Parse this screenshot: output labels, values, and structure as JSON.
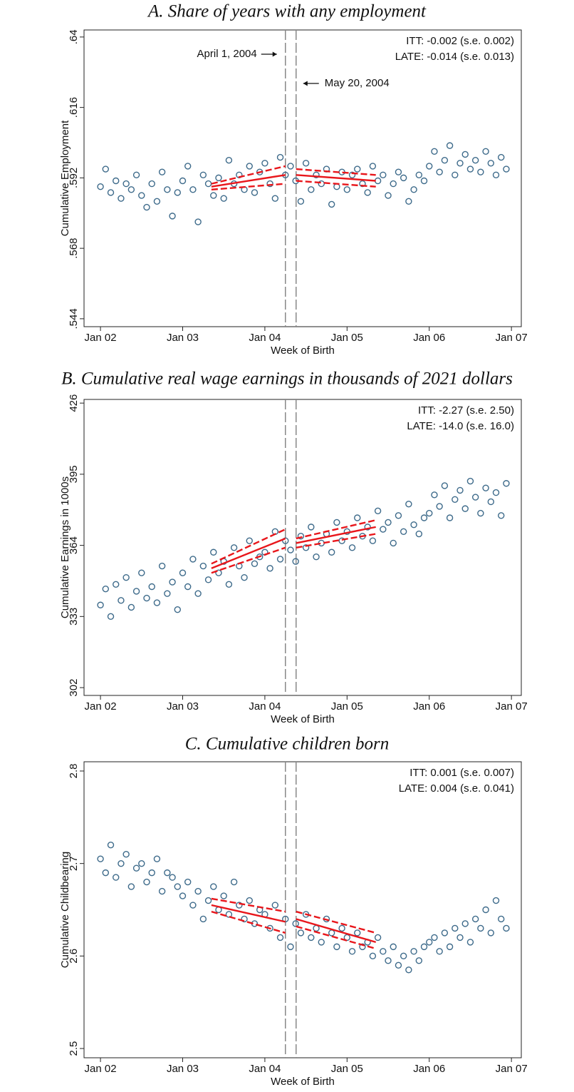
{
  "chart_data": [
    {
      "type": "scatter",
      "title": "A. Share of years with any employment",
      "x_label": "Week of Birth",
      "y_label": "Cumulative Employment",
      "xlim": [
        2001.8,
        2007.12
      ],
      "ylim": [
        0.5413,
        0.6424
      ],
      "xticks": [
        {
          "value": 2002,
          "label": "Jan 02"
        },
        {
          "value": 2003,
          "label": "Jan 03"
        },
        {
          "value": 2004,
          "label": "Jan 04"
        },
        {
          "value": 2005,
          "label": "Jan 05"
        },
        {
          "value": 2006,
          "label": "Jan 06"
        },
        {
          "value": 2007,
          "label": "Jan 07"
        }
      ],
      "yticks": [
        {
          "value": 0.544,
          "label": ".544"
        },
        {
          "value": 0.568,
          "label": ".568"
        },
        {
          "value": 0.592,
          "label": ".592"
        },
        {
          "value": 0.616,
          "label": ".616"
        },
        {
          "value": 0.64,
          "label": ".64"
        }
      ],
      "color": "#3d6a8a",
      "x": [
        2002,
        2002.0625,
        2002.125,
        2002.1875,
        2002.25,
        2002.3125,
        2002.375,
        2002.4375,
        2002.5,
        2002.5625,
        2002.625,
        2002.6875,
        2002.75,
        2002.8125,
        2002.875,
        2002.9375,
        2003,
        2003.0625,
        2003.125,
        2003.1875,
        2003.25,
        2003.3125,
        2003.375,
        2003.4375,
        2003.5,
        2003.5625,
        2003.625,
        2003.6875,
        2003.75,
        2003.8125,
        2003.875,
        2003.9375,
        2004,
        2004.0625,
        2004.125,
        2004.1875,
        2004.25,
        2004.3125,
        2004.375,
        2004.4375,
        2004.5,
        2004.5625,
        2004.625,
        2004.6875,
        2004.75,
        2004.8125,
        2004.875,
        2004.9375,
        2005,
        2005.0625,
        2005.125,
        2005.1875,
        2005.25,
        2005.3125,
        2005.375,
        2005.4375,
        2005.5,
        2005.5625,
        2005.625,
        2005.6875,
        2005.75,
        2005.8125,
        2005.875,
        2005.9375,
        2006,
        2006.0625,
        2006.125,
        2006.1875,
        2006.25,
        2006.3125,
        2006.375,
        2006.4375,
        2006.5,
        2006.5625,
        2006.625,
        2006.6875,
        2006.75,
        2006.8125,
        2006.875,
        2006.9375
      ],
      "values": [
        0.589,
        0.595,
        0.587,
        0.591,
        0.585,
        0.59,
        0.588,
        0.593,
        0.586,
        0.582,
        0.59,
        0.584,
        0.594,
        0.588,
        0.579,
        0.587,
        0.591,
        0.596,
        0.588,
        0.577,
        0.593,
        0.59,
        0.586,
        0.592,
        0.585,
        0.598,
        0.59,
        0.593,
        0.588,
        0.596,
        0.587,
        0.594,
        0.597,
        0.59,
        0.585,
        0.599,
        0.593,
        0.596,
        0.591,
        0.584,
        0.597,
        0.588,
        0.593,
        0.59,
        0.595,
        0.583,
        0.589,
        0.594,
        0.588,
        0.593,
        0.595,
        0.59,
        0.587,
        0.596,
        0.591,
        0.593,
        0.586,
        0.59,
        0.594,
        0.592,
        0.584,
        0.588,
        0.593,
        0.591,
        0.596,
        0.601,
        0.594,
        0.598,
        0.603,
        0.593,
        0.597,
        0.6,
        0.595,
        0.598,
        0.594,
        0.601,
        0.597,
        0.593,
        0.599,
        0.595
      ],
      "fits": [
        {
          "x": [
            2003.35,
            2004.25
          ],
          "values": [
            0.589,
            0.593
          ],
          "color": "#e8161b",
          "dash": false
        },
        {
          "x": [
            2003.35,
            2004.25
          ],
          "values": [
            0.59,
            0.596
          ],
          "color": "#e8161b",
          "dash": true
        },
        {
          "x": [
            2003.35,
            2004.25
          ],
          "values": [
            0.588,
            0.59
          ],
          "color": "#e8161b",
          "dash": true
        },
        {
          "x": [
            2004.38,
            2005.35
          ],
          "values": [
            0.593,
            0.591
          ],
          "color": "#e8161b",
          "dash": false
        },
        {
          "x": [
            2004.38,
            2005.35
          ],
          "values": [
            0.595,
            0.593
          ],
          "color": "#e8161b",
          "dash": true
        },
        {
          "x": [
            2004.38,
            2005.35
          ],
          "values": [
            0.591,
            0.589
          ],
          "color": "#e8161b",
          "dash": true
        }
      ],
      "vlines": [
        2004.25,
        2004.38
      ],
      "annotations": [
        "April 1, 2004",
        "May 20, 2004"
      ],
      "stats": [
        "ITT: -0.002 (s.e. 0.002)",
        "LATE: -0.014 (s.e. 0.013)"
      ]
    },
    {
      "type": "scatter",
      "title": "B. Cumulative real wage earnings in thousands of 2021 dollars",
      "x_label": "Week of Birth",
      "y_label": "Cumulative Earnings in 1000s",
      "xlim": [
        2001.8,
        2007.12
      ],
      "ylim": [
        298.6,
        427.6
      ],
      "xticks": [
        {
          "value": 2002,
          "label": "Jan 02"
        },
        {
          "value": 2003,
          "label": "Jan 03"
        },
        {
          "value": 2004,
          "label": "Jan 04"
        },
        {
          "value": 2005,
          "label": "Jan 05"
        },
        {
          "value": 2006,
          "label": "Jan 06"
        },
        {
          "value": 2007,
          "label": "Jan 07"
        }
      ],
      "yticks": [
        302,
        333,
        364,
        395,
        426
      ],
      "color": "#3d6a8a",
      "x": [
        2002,
        2002.0625,
        2002.125,
        2002.1875,
        2002.25,
        2002.3125,
        2002.375,
        2002.4375,
        2002.5,
        2002.5625,
        2002.625,
        2002.6875,
        2002.75,
        2002.8125,
        2002.875,
        2002.9375,
        2003,
        2003.0625,
        2003.125,
        2003.1875,
        2003.25,
        2003.3125,
        2003.375,
        2003.4375,
        2003.5,
        2003.5625,
        2003.625,
        2003.6875,
        2003.75,
        2003.8125,
        2003.875,
        2003.9375,
        2004,
        2004.0625,
        2004.125,
        2004.1875,
        2004.25,
        2004.3125,
        2004.375,
        2004.4375,
        2004.5,
        2004.5625,
        2004.625,
        2004.6875,
        2004.75,
        2004.8125,
        2004.875,
        2004.9375,
        2005,
        2005.0625,
        2005.125,
        2005.1875,
        2005.25,
        2005.3125,
        2005.375,
        2005.4375,
        2005.5,
        2005.5625,
        2005.625,
        2005.6875,
        2005.75,
        2005.8125,
        2005.875,
        2005.9375,
        2006,
        2006.0625,
        2006.125,
        2006.1875,
        2006.25,
        2006.3125,
        2006.375,
        2006.4375,
        2006.5,
        2006.5625,
        2006.625,
        2006.6875,
        2006.75,
        2006.8125,
        2006.875,
        2006.9375
      ],
      "values": [
        338,
        345,
        333,
        347,
        340,
        350,
        337,
        344,
        352,
        341,
        346,
        339,
        355,
        343,
        348,
        336,
        352,
        346,
        358,
        343,
        355,
        349,
        361,
        352,
        357,
        347,
        363,
        355,
        350,
        366,
        356,
        359,
        361,
        354,
        370,
        358,
        366,
        362,
        357,
        368,
        363,
        372,
        359,
        365,
        369,
        361,
        374,
        366,
        370,
        363,
        376,
        368,
        372,
        366,
        379,
        371,
        374,
        365,
        377,
        370,
        382,
        373,
        369,
        376,
        378,
        386,
        381,
        390,
        376,
        384,
        388,
        380,
        392,
        385,
        378,
        389,
        383,
        387,
        377,
        391
      ],
      "fits": [
        {
          "x": [
            2003.35,
            2004.25
          ],
          "values": [
            354,
            367
          ],
          "color": "#e8161b",
          "dash": false
        },
        {
          "x": [
            2003.35,
            2004.25
          ],
          "values": [
            356,
            371
          ],
          "color": "#e8161b",
          "dash": true
        },
        {
          "x": [
            2003.35,
            2004.25
          ],
          "values": [
            352,
            363
          ],
          "color": "#e8161b",
          "dash": true
        },
        {
          "x": [
            2004.38,
            2005.35
          ],
          "values": [
            365,
            372
          ],
          "color": "#e8161b",
          "dash": false
        },
        {
          "x": [
            2004.38,
            2005.35
          ],
          "values": [
            367,
            375
          ],
          "color": "#e8161b",
          "dash": true
        },
        {
          "x": [
            2004.38,
            2005.35
          ],
          "values": [
            363,
            369
          ],
          "color": "#e8161b",
          "dash": true
        }
      ],
      "vlines": [
        2004.25,
        2004.38
      ],
      "stats": [
        "ITT: -2.27 (s.e. 2.50)",
        "LATE: -14.0 (s.e. 16.0)"
      ]
    },
    {
      "type": "scatter",
      "title": "C. Cumulative children born",
      "x_label": "Week of Birth",
      "y_label": "Cumulative Childbearing",
      "xlim": [
        2001.8,
        2007.12
      ],
      "ylim": [
        2.49,
        2.81
      ],
      "xticks": [
        {
          "value": 2002,
          "label": "Jan 02"
        },
        {
          "value": 2003,
          "label": "Jan 03"
        },
        {
          "value": 2004,
          "label": "Jan 04"
        },
        {
          "value": 2005,
          "label": "Jan 05"
        },
        {
          "value": 2006,
          "label": "Jan 06"
        },
        {
          "value": 2007,
          "label": "Jan 07"
        }
      ],
      "yticks": [
        2.5,
        2.6,
        2.7,
        2.8
      ],
      "color": "#3d6a8a",
      "x": [
        2002,
        2002.0625,
        2002.125,
        2002.1875,
        2002.25,
        2002.3125,
        2002.375,
        2002.4375,
        2002.5,
        2002.5625,
        2002.625,
        2002.6875,
        2002.75,
        2002.8125,
        2002.875,
        2002.9375,
        2003,
        2003.0625,
        2003.125,
        2003.1875,
        2003.25,
        2003.3125,
        2003.375,
        2003.4375,
        2003.5,
        2003.5625,
        2003.625,
        2003.6875,
        2003.75,
        2003.8125,
        2003.875,
        2003.9375,
        2004,
        2004.0625,
        2004.125,
        2004.1875,
        2004.25,
        2004.3125,
        2004.375,
        2004.4375,
        2004.5,
        2004.5625,
        2004.625,
        2004.6875,
        2004.75,
        2004.8125,
        2004.875,
        2004.9375,
        2005,
        2005.0625,
        2005.125,
        2005.1875,
        2005.25,
        2005.3125,
        2005.375,
        2005.4375,
        2005.5,
        2005.5625,
        2005.625,
        2005.6875,
        2005.75,
        2005.8125,
        2005.875,
        2005.9375,
        2006,
        2006.0625,
        2006.125,
        2006.1875,
        2006.25,
        2006.3125,
        2006.375,
        2006.4375,
        2006.5,
        2006.5625,
        2006.625,
        2006.6875,
        2006.75,
        2006.8125,
        2006.875,
        2006.9375
      ],
      "values": [
        2.705,
        2.69,
        2.72,
        2.685,
        2.7,
        2.71,
        2.675,
        2.695,
        2.7,
        2.68,
        2.69,
        2.705,
        2.67,
        2.69,
        2.685,
        2.675,
        2.665,
        2.68,
        2.655,
        2.67,
        2.64,
        2.66,
        2.675,
        2.65,
        2.665,
        2.645,
        2.68,
        2.655,
        2.64,
        2.66,
        2.635,
        2.65,
        2.645,
        2.63,
        2.655,
        2.62,
        2.64,
        2.61,
        2.635,
        2.625,
        2.645,
        2.62,
        2.63,
        2.615,
        2.64,
        2.625,
        2.61,
        2.63,
        2.62,
        2.605,
        2.625,
        2.61,
        2.615,
        2.6,
        2.62,
        2.605,
        2.595,
        2.61,
        2.59,
        2.6,
        2.585,
        2.605,
        2.595,
        2.61,
        2.615,
        2.62,
        2.605,
        2.625,
        2.61,
        2.63,
        2.62,
        2.635,
        2.615,
        2.64,
        2.63,
        2.65,
        2.625,
        2.66,
        2.64,
        2.63
      ],
      "fits": [
        {
          "x": [
            2003.35,
            2004.25
          ],
          "values": [
            2.655,
            2.637
          ],
          "color": "#e8161b",
          "dash": false
        },
        {
          "x": [
            2003.35,
            2004.25
          ],
          "values": [
            2.662,
            2.648
          ],
          "color": "#e8161b",
          "dash": true
        },
        {
          "x": [
            2003.35,
            2004.25
          ],
          "values": [
            2.648,
            2.625
          ],
          "color": "#e8161b",
          "dash": true
        },
        {
          "x": [
            2004.38,
            2005.35
          ],
          "values": [
            2.64,
            2.615
          ],
          "color": "#e8161b",
          "dash": false
        },
        {
          "x": [
            2004.38,
            2005.35
          ],
          "values": [
            2.648,
            2.625
          ],
          "color": "#e8161b",
          "dash": true
        },
        {
          "x": [
            2004.38,
            2005.35
          ],
          "values": [
            2.632,
            2.608
          ],
          "color": "#e8161b",
          "dash": true
        }
      ],
      "vlines": [
        2004.25,
        2004.38
      ],
      "stats": [
        "ITT: 0.001 (s.e. 0.007)",
        "LATE: 0.004 (s.e. 0.041)"
      ]
    }
  ]
}
